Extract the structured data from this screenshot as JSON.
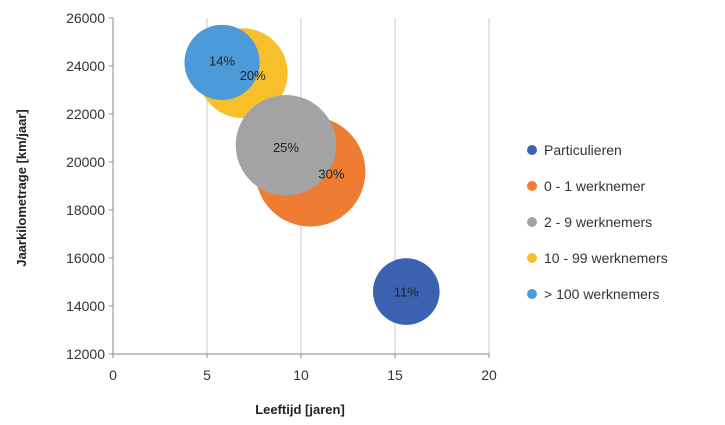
{
  "chart_data": {
    "type": "bubble",
    "xlabel": "Leeftijd [jaren]",
    "ylabel": "Jaarkilometrage [km/jaar]",
    "xlim": [
      0,
      20
    ],
    "ylim": [
      12000,
      26000
    ],
    "xticks": [
      0,
      5,
      10,
      15,
      20
    ],
    "yticks": [
      12000,
      14000,
      16000,
      18000,
      20000,
      22000,
      24000,
      26000
    ],
    "grid": "vertical",
    "legend_position": "right",
    "series": [
      {
        "name": "Particulieren",
        "color": "#3a62b0",
        "x": 15.6,
        "y": 14600,
        "share": 11,
        "label": "11%"
      },
      {
        "name": "0 - 1 werknemer",
        "color": "#ef7c33",
        "x": 10.5,
        "y": 19600,
        "share": 30,
        "label": "30%"
      },
      {
        "name": "2 - 9 werknemers",
        "color": "#a3a3a3",
        "x": 9.2,
        "y": 20700,
        "share": 25,
        "label": "25%"
      },
      {
        "name": "10 - 99 werknemers",
        "color": "#f7bf2a",
        "x": 6.9,
        "y": 23700,
        "share": 20,
        "label": "20%"
      },
      {
        "name": "> 100 werknemers",
        "color": "#4d9ad8",
        "x": 5.8,
        "y": 24150,
        "share": 14,
        "label": "14%"
      }
    ]
  }
}
